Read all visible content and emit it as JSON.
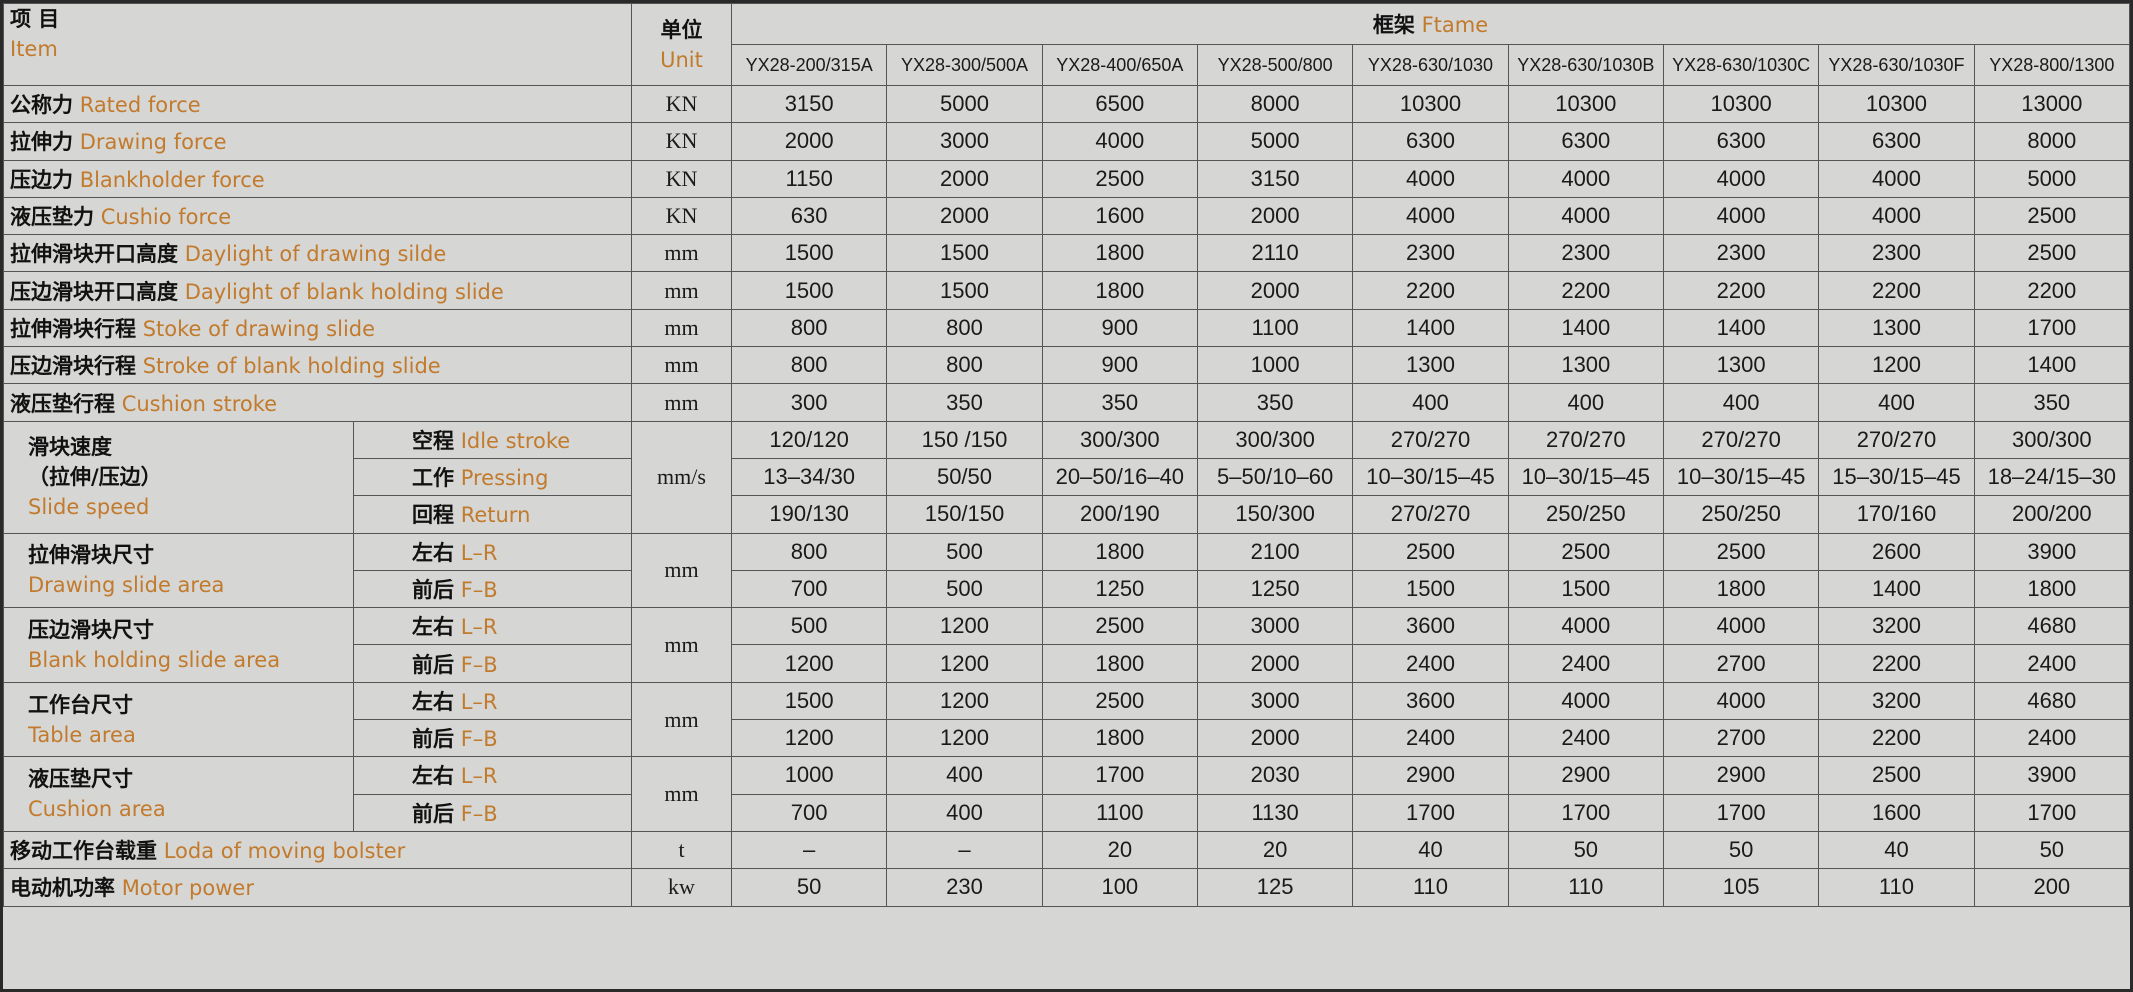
{
  "header": {
    "item_cn": "项 目",
    "item_en": "Item",
    "unit_cn": "单位",
    "unit_en": "Unit",
    "frame_cn": "框架",
    "frame_en": "Ftame",
    "models": [
      "YX28-200/315A",
      "YX28-300/500A",
      "YX28-400/650A",
      "YX28-500/800",
      "YX28-630/1030",
      "YX28-630/1030B",
      "YX28-630/1030C",
      "YX28-630/1030F",
      "YX28-800/1300"
    ]
  },
  "rows": [
    {
      "cn": "公称力",
      "en": "Rated force",
      "unit": "KN",
      "values": [
        "3150",
        "5000",
        "6500",
        "8000",
        "10300",
        "10300",
        "10300",
        "10300",
        "13000"
      ]
    },
    {
      "cn": "拉伸力",
      "en": "Drawing force",
      "unit": "KN",
      "values": [
        "2000",
        "3000",
        "4000",
        "5000",
        "6300",
        "6300",
        "6300",
        "6300",
        "8000"
      ]
    },
    {
      "cn": "压边力",
      "en": "Blankholder force",
      "unit": "KN",
      "values": [
        "1150",
        "2000",
        "2500",
        "3150",
        "4000",
        "4000",
        "4000",
        "4000",
        "5000"
      ]
    },
    {
      "cn": "液压垫力",
      "en": "Cushio  force",
      "unit": "KN",
      "values": [
        "630",
        "2000",
        "1600",
        "2000",
        "4000",
        "4000",
        "4000",
        "4000",
        "2500"
      ]
    },
    {
      "cn": "拉伸滑块开口高度",
      "en": "Daylight of drawing silde",
      "unit": "mm",
      "values": [
        "1500",
        "1500",
        "1800",
        "2110",
        "2300",
        "2300",
        "2300",
        "2300",
        "2500"
      ]
    },
    {
      "cn": "压边滑块开口高度",
      "en": "Daylight of blank holding slide",
      "unit": "mm",
      "values": [
        "1500",
        "1500",
        "1800",
        "2000",
        "2200",
        "2200",
        "2200",
        "2200",
        "2200"
      ]
    },
    {
      "cn": "拉伸滑块行程",
      "en": "Stoke of drawing slide",
      "unit": "mm",
      "values": [
        "800",
        "800",
        "900",
        "1100",
        "1400",
        "1400",
        "1400",
        "1300",
        "1700"
      ]
    },
    {
      "cn": "压边滑块行程",
      "en": "Stroke of blank holding slide",
      "unit": "mm",
      "values": [
        "800",
        "800",
        "900",
        "1000",
        "1300",
        "1300",
        "1300",
        "1200",
        "1400"
      ]
    },
    {
      "cn": "液压垫行程",
      "en": "Cushion stroke",
      "unit": "mm",
      "values": [
        "300",
        "350",
        "350",
        "350",
        "400",
        "400",
        "400",
        "400",
        "350"
      ]
    },
    {
      "cn_lines": [
        "滑块速度",
        "（拉伸/压边）"
      ],
      "en": "Slide speed",
      "unit": "mm/s",
      "sub": [
        {
          "cn": "空程",
          "en": "Idle stroke",
          "values": [
            "120/120",
            "150 /150",
            "300/300",
            "300/300",
            "270/270",
            "270/270",
            "270/270",
            "270/270",
            "300/300"
          ]
        },
        {
          "cn": "工作",
          "en": "Pressing",
          "values": [
            "13–34/30",
            "50/50",
            "20–50/16–40",
            "5–50/10–60",
            "10–30/15–45",
            "10–30/15–45",
            "10–30/15–45",
            "15–30/15–45",
            "18–24/15–30"
          ]
        },
        {
          "cn": "回程",
          "en": "Return",
          "values": [
            "190/130",
            "150/150",
            "200/190",
            "150/300",
            "270/270",
            "250/250",
            "250/250",
            "170/160",
            "200/200"
          ]
        }
      ]
    },
    {
      "cn_lines": [
        "拉伸滑块尺寸"
      ],
      "en": "Drawing slide area",
      "unit": "mm",
      "sub": [
        {
          "cn": "左右",
          "en": "L–R",
          "values": [
            "800",
            "500",
            "1800",
            "2100",
            "2500",
            "2500",
            "2500",
            "2600",
            "3900"
          ]
        },
        {
          "cn": "前后",
          "en": "F–B",
          "values": [
            "700",
            "500",
            "1250",
            "1250",
            "1500",
            "1500",
            "1800",
            "1400",
            "1800"
          ]
        }
      ]
    },
    {
      "cn_lines": [
        "压边滑块尺寸"
      ],
      "en": "Blank holding slide area",
      "unit": "mm",
      "sub": [
        {
          "cn": "左右",
          "en": "L–R",
          "values": [
            "500",
            "1200",
            "2500",
            "3000",
            "3600",
            "4000",
            "4000",
            "3200",
            "4680"
          ]
        },
        {
          "cn": "前后",
          "en": "F–B",
          "values": [
            "1200",
            "1200",
            "1800",
            "2000",
            "2400",
            "2400",
            "2700",
            "2200",
            "2400"
          ]
        }
      ]
    },
    {
      "cn_lines": [
        "工作台尺寸"
      ],
      "en": "Table area",
      "unit": "mm",
      "sub": [
        {
          "cn": "左右",
          "en": "L–R",
          "values": [
            "1500",
            "1200",
            "2500",
            "3000",
            "3600",
            "4000",
            "4000",
            "3200",
            "4680"
          ]
        },
        {
          "cn": "前后",
          "en": "F–B",
          "values": [
            "1200",
            "1200",
            "1800",
            "2000",
            "2400",
            "2400",
            "2700",
            "2200",
            "2400"
          ]
        }
      ]
    },
    {
      "cn_lines": [
        "液压垫尺寸"
      ],
      "en": "Cushion area",
      "unit": "mm",
      "sub": [
        {
          "cn": "左右",
          "en": "L–R",
          "values": [
            "1000",
            "400",
            "1700",
            "2030",
            "2900",
            "2900",
            "2900",
            "2500",
            "3900"
          ]
        },
        {
          "cn": "前后",
          "en": "F–B",
          "values": [
            "700",
            "400",
            "1100",
            "1130",
            "1700",
            "1700",
            "1700",
            "1600",
            "1700"
          ]
        }
      ]
    },
    {
      "cn": "移动工作台载重",
      "en": "Loda of moving bolster",
      "unit": "t",
      "values": [
        "–",
        "–",
        "20",
        "20",
        "40",
        "50",
        "50",
        "40",
        "50"
      ]
    },
    {
      "cn": "电动机功率",
      "en": "Motor power",
      "unit": "kw",
      "values": [
        "50",
        "230",
        "100",
        "125",
        "110",
        "110",
        "105",
        "110",
        "200"
      ]
    }
  ]
}
